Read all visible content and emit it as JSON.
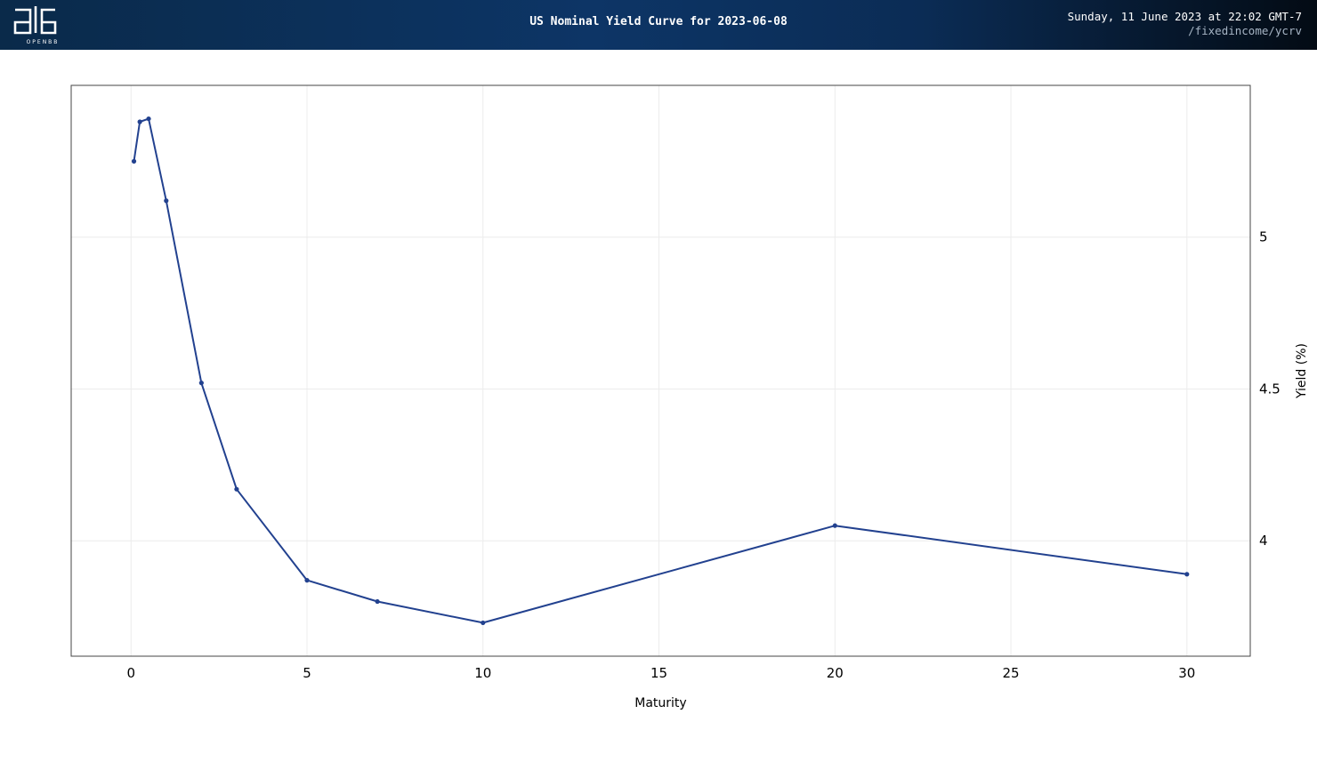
{
  "header": {
    "logo_text": "OPENBB",
    "title": "US Nominal Yield Curve for 2023-06-08",
    "timestamp": "Sunday, 11 June 2023 at 22:02 GMT-7",
    "command": "/fixedincome/ycrv"
  },
  "colors": {
    "line": "#22418f",
    "grid": "#ececec",
    "frame": "#444444"
  },
  "chart_data": {
    "type": "line",
    "title": "US Nominal Yield Curve for 2023-06-08",
    "xlabel": "Maturity",
    "ylabel": "Yield (%)",
    "xlim": [
      -1.7,
      31.8
    ],
    "ylim": [
      3.62,
      5.5
    ],
    "xticks": [
      0,
      5,
      10,
      15,
      20,
      25,
      30
    ],
    "yticks": [
      4,
      4.5,
      5
    ],
    "grid": true,
    "y_axis_side": "right",
    "series": [
      {
        "x": [
          0.083,
          0.25,
          0.5,
          1,
          2,
          3,
          5,
          7,
          10,
          20,
          30
        ],
        "y": [
          5.25,
          5.38,
          5.39,
          5.12,
          4.52,
          4.17,
          3.87,
          3.8,
          3.73,
          4.05,
          3.89
        ]
      }
    ]
  }
}
